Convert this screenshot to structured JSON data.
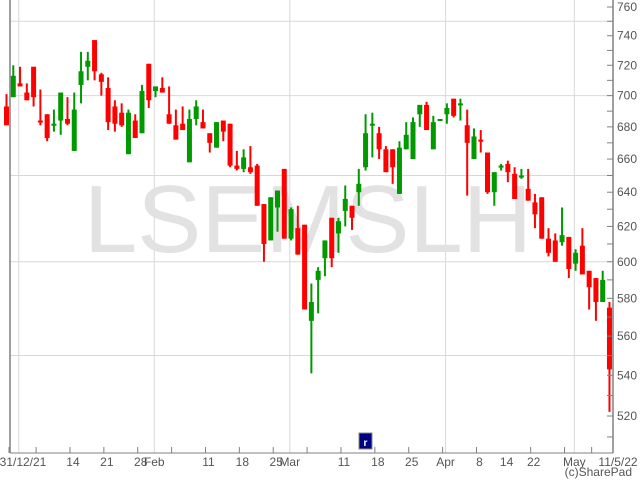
{
  "chart_data": {
    "type": "candlestick",
    "title": "",
    "watermark": "LSEMSLH",
    "copyright": "(c)SharePad",
    "y_scale": "log",
    "ylim": [
      502,
      762
    ],
    "y_ticks": [
      520,
      540,
      560,
      580,
      600,
      620,
      640,
      660,
      680,
      700,
      720,
      740,
      760
    ],
    "y_minor_step": 10,
    "y_gridlines": [
      550,
      600,
      650,
      700,
      750
    ],
    "x_gridlines": [
      "2022-01-04",
      "2022-02-01",
      "2022-03-01",
      "2022-04-01",
      "2022-05-03"
    ],
    "grid": true,
    "colors": {
      "up": "#009900",
      "down": "#ff0000",
      "grid": "#d8d8d8",
      "axis": "#808080",
      "marker": "#000080"
    },
    "x_tick_labels": [
      {
        "date": "2021-12-31",
        "label": "31/12/21"
      },
      {
        "date": "2022-01-14",
        "label": "14"
      },
      {
        "date": "2022-01-21",
        "label": "21"
      },
      {
        "date": "2022-01-28",
        "label": "28"
      },
      {
        "date": "2022-02-01",
        "label": "Feb"
      },
      {
        "date": "2022-02-11",
        "label": "11"
      },
      {
        "date": "2022-02-18",
        "label": "18"
      },
      {
        "date": "2022-02-25",
        "label": "25"
      },
      {
        "date": "2022-03-01",
        "label": "Mar"
      },
      {
        "date": "2022-03-11",
        "label": "11"
      },
      {
        "date": "2022-03-18",
        "label": "18"
      },
      {
        "date": "2022-03-25",
        "label": "25"
      },
      {
        "date": "2022-04-01",
        "label": "Apr"
      },
      {
        "date": "2022-04-08",
        "label": "8"
      },
      {
        "date": "2022-04-14",
        "label": "14"
      },
      {
        "date": "2022-04-22",
        "label": "22"
      },
      {
        "date": "2022-05-03",
        "label": "May"
      },
      {
        "date": "2022-05-11",
        "label": "11/5/22"
      }
    ],
    "event_marker": {
      "date": "2022-03-17",
      "label": "r"
    },
    "dates": [
      "2021-12-31",
      "2022-01-04",
      "2022-01-05",
      "2022-01-06",
      "2022-01-07",
      "2022-01-10",
      "2022-01-11",
      "2022-01-12",
      "2022-01-13",
      "2022-01-14",
      "2022-01-17",
      "2022-01-18",
      "2022-01-19",
      "2022-01-20",
      "2022-01-21",
      "2022-01-24",
      "2022-01-25",
      "2022-01-26",
      "2022-01-27",
      "2022-01-28",
      "2022-01-31",
      "2022-02-01",
      "2022-02-02",
      "2022-02-03",
      "2022-02-04",
      "2022-02-07",
      "2022-02-08",
      "2022-02-09",
      "2022-02-10",
      "2022-02-11",
      "2022-02-14",
      "2022-02-15",
      "2022-02-16",
      "2022-02-17",
      "2022-02-18",
      "2022-02-21",
      "2022-02-22",
      "2022-02-23",
      "2022-02-24",
      "2022-02-25",
      "2022-02-28",
      "2022-03-01",
      "2022-03-02",
      "2022-03-03",
      "2022-03-04",
      "2022-03-07",
      "2022-03-08",
      "2022-03-09",
      "2022-03-10",
      "2022-03-11",
      "2022-03-14",
      "2022-03-15",
      "2022-03-16",
      "2022-03-17",
      "2022-03-18",
      "2022-03-21",
      "2022-03-22",
      "2022-03-23",
      "2022-03-24",
      "2022-03-25",
      "2022-03-28",
      "2022-03-29",
      "2022-03-30",
      "2022-03-31",
      "2022-04-01",
      "2022-04-04",
      "2022-04-05",
      "2022-04-06",
      "2022-04-07",
      "2022-04-08",
      "2022-04-11",
      "2022-04-12",
      "2022-04-13",
      "2022-04-14",
      "2022-04-19",
      "2022-04-20",
      "2022-04-21",
      "2022-04-22",
      "2022-04-25",
      "2022-04-26",
      "2022-04-27",
      "2022-04-28",
      "2022-04-29",
      "2022-05-03",
      "2022-05-04",
      "2022-05-05",
      "2022-05-06",
      "2022-05-09",
      "2022-05-10",
      "2022-05-11"
    ],
    "ohlc": [
      [
        693,
        701,
        681,
        681
      ],
      [
        699,
        720,
        699,
        713
      ],
      [
        708,
        719,
        706,
        706
      ],
      [
        702,
        708,
        697,
        697
      ],
      [
        719,
        719,
        693,
        699
      ],
      [
        684,
        704,
        681,
        683
      ],
      [
        688,
        688,
        671,
        673
      ],
      [
        681,
        691,
        677,
        682
      ],
      [
        684,
        702,
        675,
        702
      ],
      [
        685,
        699,
        681,
        682
      ],
      [
        665,
        702,
        665,
        691
      ],
      [
        707,
        729,
        695,
        716
      ],
      [
        719,
        729,
        710,
        723
      ],
      [
        737,
        737,
        710,
        716
      ],
      [
        714,
        715,
        700,
        709
      ],
      [
        705,
        712,
        678,
        683
      ],
      [
        693,
        697,
        677,
        682
      ],
      [
        689,
        695,
        680,
        681
      ],
      [
        663,
        691,
        663,
        689
      ],
      [
        684,
        688,
        673,
        673
      ],
      [
        676,
        707,
        676,
        703
      ],
      [
        721,
        721,
        692,
        697
      ],
      [
        703,
        706,
        699,
        706
      ],
      [
        705,
        712,
        702,
        702
      ],
      [
        688,
        706,
        682,
        682
      ],
      [
        681,
        691,
        672,
        672
      ],
      [
        682,
        693,
        678,
        678
      ],
      [
        658,
        691,
        658,
        685
      ],
      [
        685,
        697,
        681,
        693
      ],
      [
        683,
        691,
        679,
        679
      ],
      [
        676,
        676,
        664,
        670
      ],
      [
        667,
        683,
        667,
        683
      ],
      [
        684,
        684,
        671,
        677
      ],
      [
        682,
        682,
        655,
        656
      ],
      [
        656,
        665,
        653,
        654
      ],
      [
        654,
        666,
        652,
        661
      ],
      [
        655,
        668,
        651,
        652
      ],
      [
        656,
        657,
        632,
        632
      ],
      [
        633,
        633,
        600,
        610
      ],
      [
        612,
        637,
        612,
        637
      ],
      [
        631,
        641,
        617,
        641
      ],
      [
        654,
        654,
        613,
        613
      ],
      [
        613,
        631,
        612,
        630
      ],
      [
        619,
        632,
        604,
        604
      ],
      [
        621,
        621,
        574,
        574
      ],
      [
        568,
        588,
        541,
        578
      ],
      [
        590,
        597,
        572,
        595
      ],
      [
        602,
        612,
        592,
        612
      ],
      [
        625,
        625,
        597,
        602
      ],
      [
        616,
        625,
        605,
        623
      ],
      [
        629,
        644,
        620,
        636
      ],
      [
        632,
        632,
        618,
        625
      ],
      [
        640,
        654,
        632,
        645
      ],
      [
        655,
        688,
        653,
        676
      ],
      [
        681,
        689,
        661,
        682
      ],
      [
        676,
        680,
        660,
        666
      ],
      [
        666,
        668,
        652,
        652
      ],
      [
        666,
        666,
        645,
        655
      ],
      [
        639,
        671,
        639,
        667
      ],
      [
        666,
        683,
        666,
        675
      ],
      [
        660,
        686,
        660,
        683
      ],
      [
        688,
        694,
        680,
        694
      ],
      [
        694,
        696,
        678,
        678
      ],
      [
        666,
        687,
        666,
        683
      ],
      [
        684,
        685,
        684,
        685
      ],
      [
        688,
        695,
        682,
        692
      ],
      [
        698,
        698,
        686,
        687
      ],
      [
        694,
        698,
        684,
        695
      ],
      [
        681,
        691,
        638,
        670
      ],
      [
        660,
        679,
        660,
        674
      ],
      [
        672,
        678,
        664,
        671
      ],
      [
        664,
        664,
        639,
        640
      ],
      [
        640,
        652,
        632,
        652
      ],
      [
        655,
        657,
        653,
        656
      ],
      [
        657,
        659,
        646,
        652
      ],
      [
        651,
        655,
        636,
        636
      ],
      [
        650,
        654,
        648,
        650
      ],
      [
        642,
        654,
        635,
        635
      ],
      [
        634,
        639,
        619,
        627
      ],
      [
        637,
        637,
        613,
        613
      ],
      [
        613,
        619,
        603,
        605
      ],
      [
        612,
        616,
        600,
        600
      ],
      [
        611,
        631,
        609,
        615
      ],
      [
        614,
        614,
        591,
        596
      ],
      [
        599,
        607,
        595,
        605
      ],
      [
        609,
        619,
        593,
        593
      ],
      [
        595,
        595,
        574,
        586
      ],
      [
        591,
        591,
        568,
        578
      ],
      [
        578,
        595,
        578,
        590
      ],
      [
        575,
        578,
        522,
        543
      ]
    ]
  }
}
